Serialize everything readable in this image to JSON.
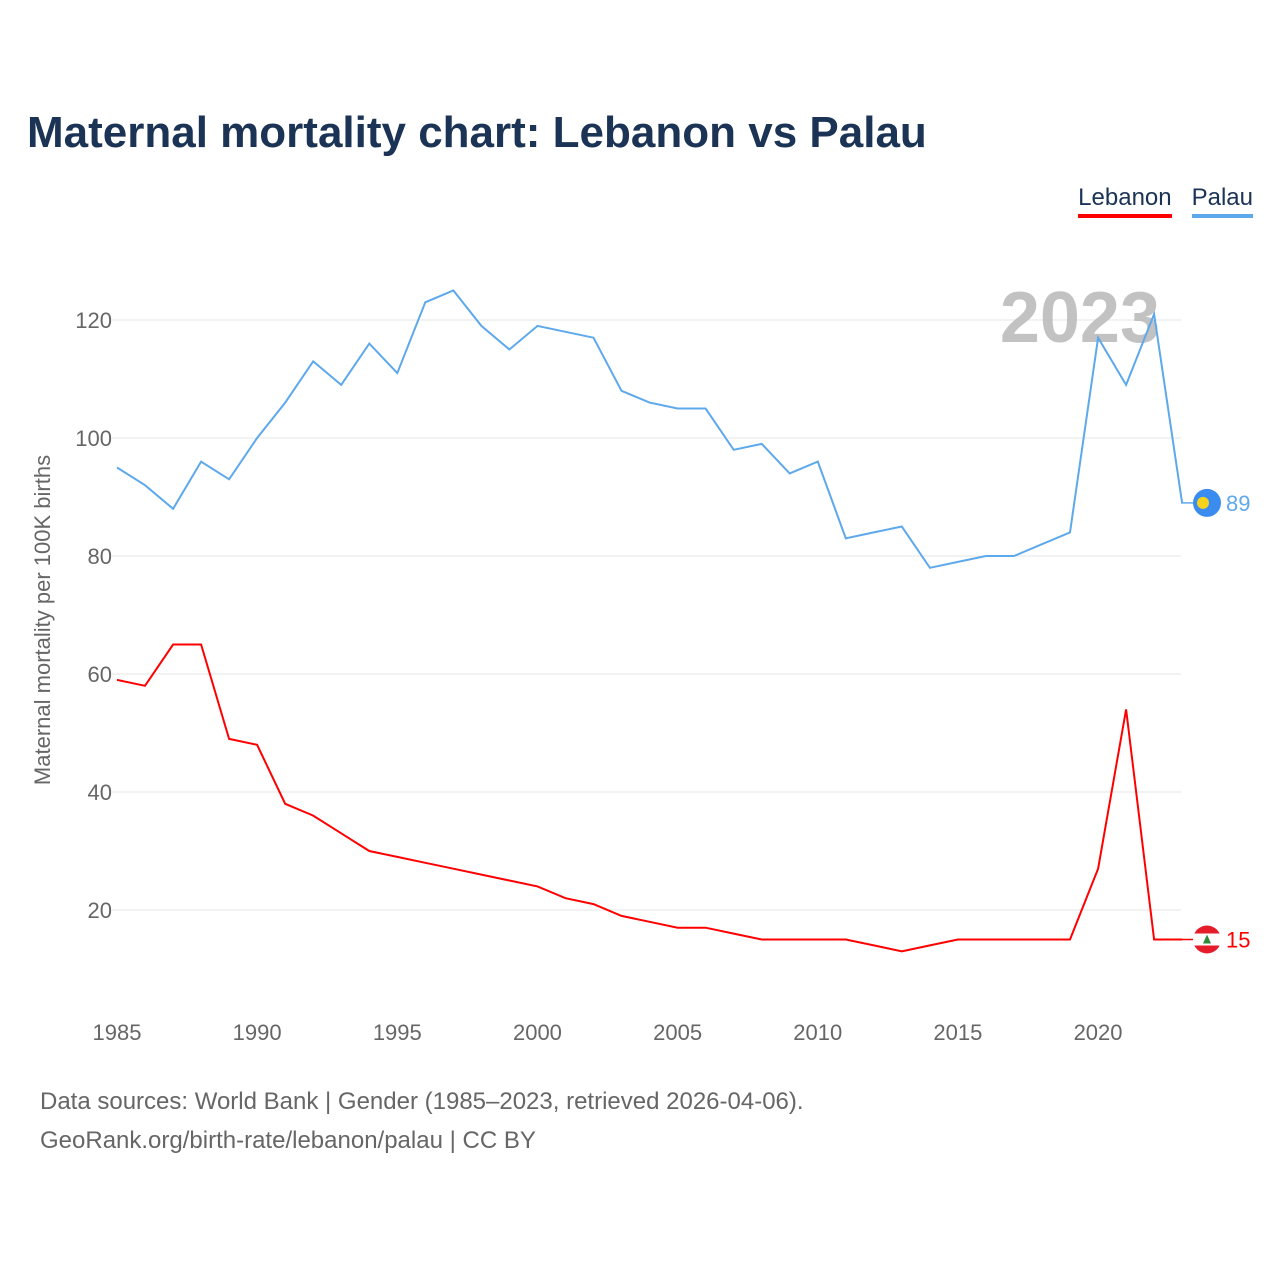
{
  "title": "Maternal mortality chart: Lebanon vs Palau",
  "year_watermark": "2023",
  "footer": {
    "line1": "Data sources: World Bank | Gender (1985–2023, retrieved 2026-04-06).",
    "line2": "GeoRank.org/birth-rate/lebanon/palau | CC BY"
  },
  "chart_data": {
    "type": "line",
    "title": "Maternal mortality chart: Lebanon vs Palau",
    "xlabel": "",
    "ylabel": "Maternal mortality per 100K births",
    "xlim": [
      1985,
      2023
    ],
    "ylim": [
      0,
      130
    ],
    "xticks": [
      1985,
      1990,
      1995,
      2000,
      2005,
      2010,
      2015,
      2020
    ],
    "yticks": [
      20,
      40,
      60,
      80,
      100,
      120
    ],
    "grid": true,
    "legend": "top-right",
    "x": [
      1985,
      1986,
      1987,
      1988,
      1989,
      1990,
      1991,
      1992,
      1993,
      1994,
      1995,
      1996,
      1997,
      1998,
      1999,
      2000,
      2001,
      2002,
      2003,
      2004,
      2005,
      2006,
      2007,
      2008,
      2009,
      2010,
      2011,
      2012,
      2013,
      2014,
      2015,
      2016,
      2017,
      2018,
      2019,
      2020,
      2021,
      2022,
      2023
    ],
    "series": [
      {
        "name": "Lebanon",
        "color": "#ff0000",
        "end_label": "15",
        "values": [
          59,
          58,
          65,
          65,
          49,
          48,
          38,
          36,
          33,
          30,
          29,
          28,
          27,
          26,
          25,
          24,
          22,
          21,
          19,
          18,
          17,
          17,
          16,
          15,
          15,
          15,
          15,
          14,
          13,
          14,
          15,
          15,
          15,
          15,
          15,
          27,
          54,
          15,
          15
        ]
      },
      {
        "name": "Palau",
        "color": "#5ea8ec",
        "end_label": "89",
        "values": [
          95,
          92,
          88,
          96,
          93,
          100,
          106,
          113,
          109,
          116,
          111,
          123,
          125,
          119,
          115,
          119,
          118,
          117,
          108,
          106,
          105,
          105,
          98,
          99,
          94,
          96,
          83,
          84,
          85,
          78,
          79,
          80,
          80,
          82,
          84,
          117,
          109,
          121,
          89
        ]
      }
    ]
  }
}
